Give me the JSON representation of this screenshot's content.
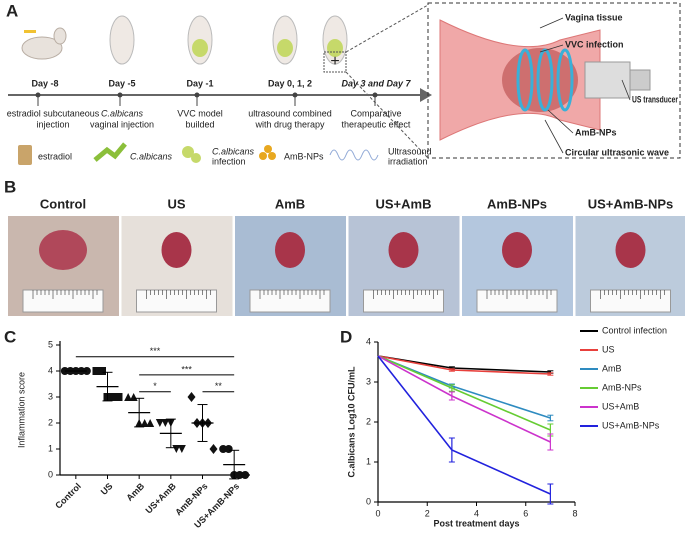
{
  "panelA": {
    "label": "A",
    "days": [
      "Day -8",
      "Day -5",
      "Day -1",
      "Day  0, 1, 2",
      "Day 3 and Day 7"
    ],
    "steps": [
      [
        "estradiol subcutaneous",
        "injection"
      ],
      [
        "C.albicans",
        "vaginal  injection"
      ],
      [
        "VVC  model",
        "builded"
      ],
      [
        "ultrasound combined",
        "with drug therapy"
      ],
      [
        "Comparative",
        "therapeutic effect"
      ]
    ],
    "plus": "+",
    "legend": [
      [
        "estradiol"
      ],
      [
        "C.albicans"
      ],
      [
        "C.albicans",
        "infection"
      ],
      [
        "AmB-NPs"
      ],
      [
        "Ultrasound",
        "irradiation"
      ]
    ],
    "inset": [
      "Vagina tissue",
      "VVC infection",
      "US transducer",
      "AmB-NPs",
      "Circular ultrasonic wave"
    ]
  },
  "panelB": {
    "label": "B",
    "groups": [
      "Control",
      "US",
      "AmB",
      "US+AmB",
      "AmB-NPs",
      "US+AmB-NPs"
    ]
  },
  "chart_data": [
    {
      "type": "dot",
      "label": "C",
      "ylabel": "Inflammation score",
      "categories": [
        "Control",
        "US",
        "AmB",
        "US+AmB",
        "AmB-NPs",
        "US+AmB-NPs"
      ],
      "markers": [
        "circle",
        "square",
        "triangle",
        "triangle-down",
        "diamond",
        "circle"
      ],
      "points": [
        [
          4,
          4,
          4,
          4,
          4
        ],
        [
          4,
          4,
          3,
          3,
          3
        ],
        [
          3,
          3,
          2,
          2,
          2
        ],
        [
          2,
          2,
          2,
          1,
          1
        ],
        [
          3,
          2,
          2,
          2,
          1
        ],
        [
          1,
          1,
          0,
          0,
          0
        ]
      ],
      "means": [
        4,
        3.4,
        2.4,
        1.6,
        2,
        0.4
      ],
      "sds": [
        0,
        0.55,
        0.55,
        0.55,
        0.71,
        0.55
      ],
      "significance": [
        {
          "text": "***",
          "from": 0,
          "to": 5,
          "y": 4.55
        },
        {
          "text": "***",
          "from": 2,
          "to": 5,
          "y": 3.85
        },
        {
          "text": "*",
          "from": 2,
          "to": 3,
          "y": 3.2
        },
        {
          "text": "**",
          "from": 4,
          "to": 5,
          "y": 3.2
        }
      ],
      "ylim": [
        0,
        5
      ],
      "yticks": [
        0,
        1,
        2,
        3,
        4,
        5
      ]
    },
    {
      "type": "line",
      "label": "D",
      "ylabel": "C.albicans Log10 CFU/mL",
      "xlabel": "Post treatment days",
      "x": [
        0,
        3,
        7
      ],
      "xlim": [
        0,
        8
      ],
      "xticks": [
        0,
        2,
        4,
        6,
        8
      ],
      "ylim": [
        0,
        4
      ],
      "yticks": [
        0,
        1,
        2,
        3,
        4
      ],
      "series": [
        {
          "name": "Control infection",
          "color": "#000000",
          "values": [
            3.65,
            3.35,
            3.25
          ],
          "errors": [
            null,
            0.03,
            0.03
          ]
        },
        {
          "name": "US",
          "color": "#e8403c",
          "values": [
            3.65,
            3.3,
            3.2
          ],
          "errors": [
            null,
            0.03,
            0.03
          ]
        },
        {
          "name": "AmB",
          "color": "#2e8bc0",
          "values": [
            3.65,
            2.9,
            2.1
          ],
          "errors": [
            null,
            0.05,
            0.07
          ]
        },
        {
          "name": "AmB-NPs",
          "color": "#66cc33",
          "values": [
            3.65,
            2.85,
            1.8
          ],
          "errors": [
            null,
            0.08,
            0.15
          ]
        },
        {
          "name": "US+AmB",
          "color": "#cc33cc",
          "values": [
            3.65,
            2.65,
            1.5
          ],
          "errors": [
            null,
            0.1,
            0.2
          ]
        },
        {
          "name": "US+AmB-NPs",
          "color": "#2222dd",
          "values": [
            3.65,
            1.3,
            0.2
          ],
          "errors": [
            null,
            0.3,
            0.25
          ]
        }
      ]
    }
  ]
}
